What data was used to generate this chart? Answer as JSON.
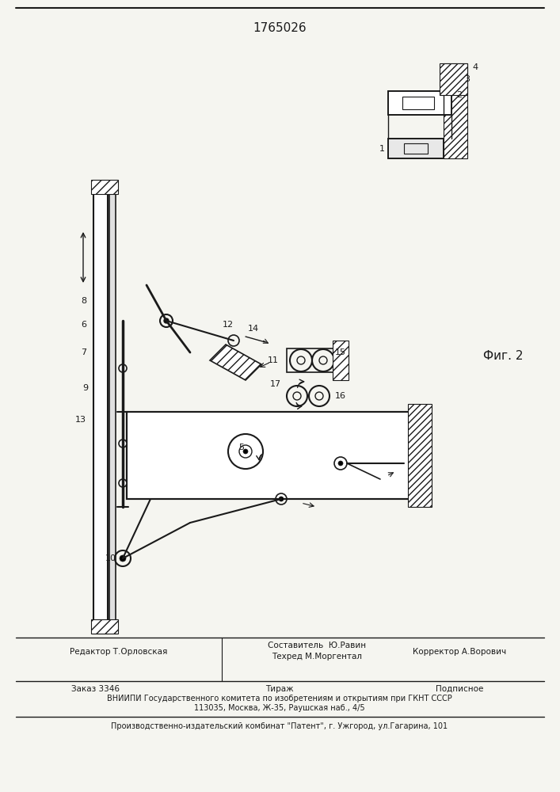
{
  "title": "1765026",
  "fig_label": "Фиг. 2",
  "footer_line1_left": "Редактор Т.Орловская",
  "footer_line1_mid": "Составитель  Ю.Равин\nТехред М.Моргентал",
  "footer_line1_right": "Корректор А.Ворович",
  "footer_line2_left": "Заказ 3346",
  "footer_line2_mid": "Тираж",
  "footer_line2_right": "Подписное",
  "footer_line3": "ВНИИПИ Государственного комитета по изобретениям и открытиям при ГКНТ СССР",
  "footer_line4": "113035, Москва, Ж-35, Раушская наб., 4/5",
  "footer_line5": "Производственно-издательский комбинат \"Патент\", г. Ужгород, ул.Гагарина, 101",
  "bg_color": "#f5f5f0",
  "line_color": "#1a1a1a",
  "text_color": "#1a1a1a"
}
